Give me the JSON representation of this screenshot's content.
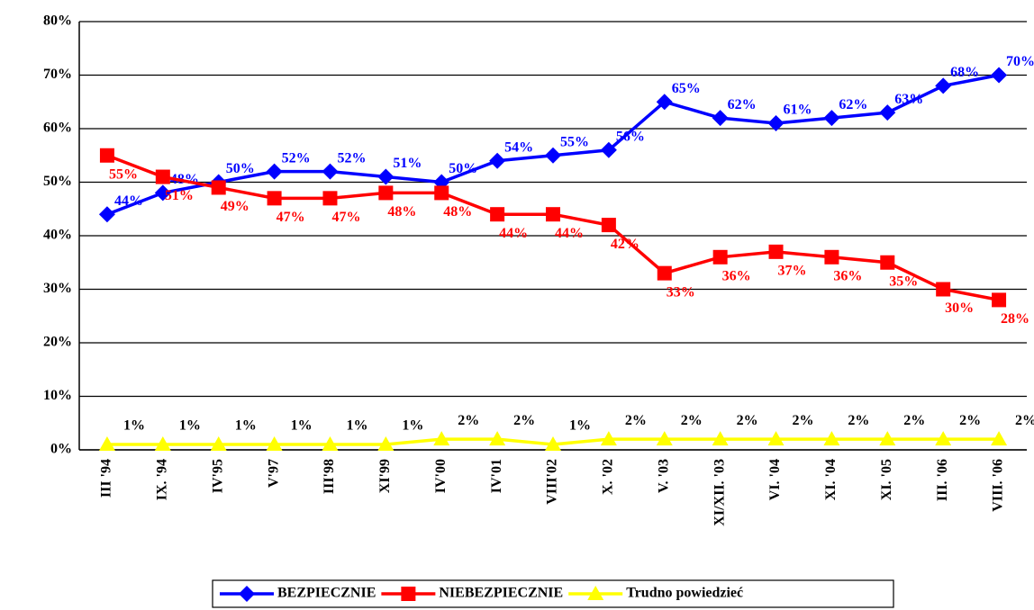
{
  "chart_data": {
    "type": "line",
    "categories": [
      "III '94",
      "IX. '94",
      "IV'95",
      "V'97",
      "III'98",
      "XI'99",
      "IV'00",
      "IV'01",
      "VIII'02",
      "X. '02",
      "V. '03",
      "XI/XII. '03",
      "VI. '04",
      "XI. '04",
      "XI. '05",
      "III. '06",
      "VIII. '06"
    ],
    "series": [
      {
        "name": "BEZPIECZNIE",
        "color": "#0000ff",
        "marker": "diamond",
        "values": [
          44,
          48,
          50,
          52,
          52,
          51,
          50,
          54,
          55,
          56,
          65,
          62,
          61,
          62,
          63,
          68,
          70
        ],
        "value_labels": [
          "44%",
          "48%",
          "50%",
          "52%",
          "52%",
          "51%",
          "50%",
          "54%",
          "55%",
          "56%",
          "65%",
          "62%",
          "61%",
          "62%",
          "63%",
          "68%",
          "70%"
        ]
      },
      {
        "name": "NIEBEZPIECZNIE",
        "color": "#ff0000",
        "marker": "square",
        "values": [
          55,
          51,
          49,
          47,
          47,
          48,
          48,
          44,
          44,
          42,
          33,
          36,
          37,
          36,
          35,
          30,
          28
        ],
        "value_labels": [
          "55%",
          "51%",
          "49%",
          "47%",
          "47%",
          "48%",
          "48%",
          "44%",
          "44%",
          "42%",
          "33%",
          "36%",
          "37%",
          "36%",
          "35%",
          "30%",
          "28%"
        ]
      },
      {
        "name": "Trudno powiedzieć",
        "color": "#ffff00",
        "marker": "triangle",
        "values": [
          1,
          1,
          1,
          1,
          1,
          1,
          2,
          2,
          1,
          2,
          2,
          2,
          2,
          2,
          2,
          2,
          2
        ],
        "value_labels": [
          "1%",
          "1%",
          "1%",
          "1%",
          "1%",
          "1%",
          "2%",
          "2%",
          "1%",
          "2%",
          "2%",
          "2%",
          "2%",
          "2%",
          "2%",
          "2%",
          "2%"
        ]
      }
    ],
    "ylim": [
      0,
      80
    ],
    "yticks": [
      {
        "value": 0,
        "label": "0%"
      },
      {
        "value": 10,
        "label": "10%"
      },
      {
        "value": 20,
        "label": "20%"
      },
      {
        "value": 30,
        "label": "30%"
      },
      {
        "value": 40,
        "label": "40%"
      },
      {
        "value": 50,
        "label": "50%"
      },
      {
        "value": 60,
        "label": "60%"
      },
      {
        "value": 70,
        "label": "70%"
      },
      {
        "value": 80,
        "label": "80%"
      }
    ],
    "grid": true,
    "legend": "bottom"
  }
}
